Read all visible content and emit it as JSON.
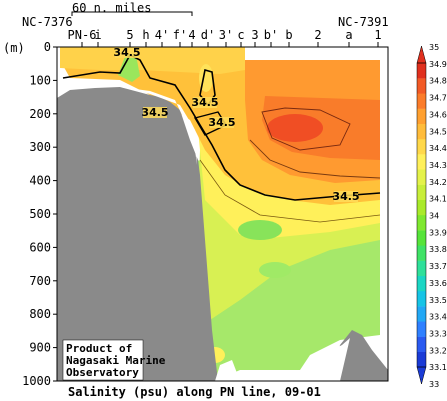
{
  "chart_data": {
    "type": "heatmap",
    "title": "Salinity (psu) along PN line, 09-01",
    "ylabel": "(m)",
    "y_ticks": [
      0,
      100,
      200,
      300,
      400,
      500,
      600,
      700,
      800,
      900,
      1000
    ],
    "ylim": [
      1000,
      0
    ],
    "station_labels": [
      "PN-6",
      "i",
      "5",
      "h",
      "4'",
      "f'",
      "4",
      "d'",
      "3'",
      "c",
      "3",
      "b'",
      "b",
      "2",
      "a",
      "1"
    ],
    "end_labels": {
      "left": "NC-7376",
      "right": "NC-7391"
    },
    "scale_label": "60 n. miles",
    "contour_label": "34.5",
    "colorbar": {
      "levels": [
        33,
        33.1,
        33.2,
        33.3,
        33.4,
        33.5,
        33.6,
        33.7,
        33.8,
        33.9,
        34,
        34.1,
        34.2,
        34.3,
        34.4,
        34.5,
        34.6,
        34.7,
        34.8,
        34.9,
        35
      ],
      "colors": [
        "#1a3bd6",
        "#2a5af0",
        "#2f80ff",
        "#22a8f5",
        "#16c4e6",
        "#1bd6c4",
        "#2fe09a",
        "#3fe266",
        "#56e43a",
        "#7fe830",
        "#a9ea2a",
        "#c8ee3a",
        "#e4f24a",
        "#fff05a",
        "#ffd84a",
        "#ffbc3a",
        "#ffa030",
        "#fb7c2a",
        "#f25a26",
        "#e0301e"
      ]
    },
    "credit": "Product of\nNagasaki Marine\nObservatory"
  }
}
